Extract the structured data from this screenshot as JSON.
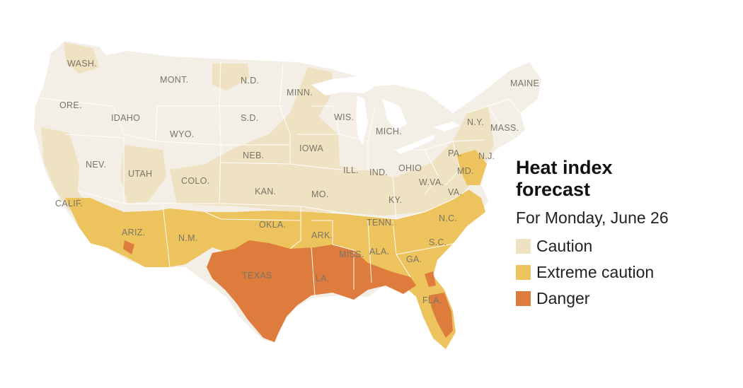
{
  "legend": {
    "title": "Heat index forecast",
    "subtitle": "For Monday, June 26",
    "items": [
      {
        "label": "Caution",
        "color": "#efe2c2"
      },
      {
        "label": "Extreme caution",
        "color": "#ecc35c"
      },
      {
        "label": "Danger",
        "color": "#dd7c3d"
      }
    ]
  },
  "map": {
    "base_color": "#f3efe6",
    "border_color": "#ffffff",
    "state_labels": {
      "wash": "WASH.",
      "ore": "ORE.",
      "calif": "CALIF.",
      "idaho": "IDAHO",
      "nev": "NEV.",
      "mont": "MONT.",
      "wyo": "WYO.",
      "utah": "UTAH",
      "ariz": "ARIZ.",
      "colo": "COLO.",
      "nm": "N.M.",
      "nd": "N.D.",
      "sd": "S.D.",
      "neb": "NEB.",
      "kan": "KAN.",
      "okla": "OKLA.",
      "texas": "TEXAS",
      "minn": "MINN.",
      "iowa": "IOWA",
      "mo": "MO.",
      "ark": "ARK.",
      "la": "LA.",
      "wis": "WIS.",
      "ill": "ILL.",
      "miss": "MISS.",
      "mich": "MICH.",
      "ind": "IND.",
      "ohio": "OHIO",
      "ky": "KY.",
      "tenn": "TENN.",
      "ala": "ALA.",
      "ga": "GA.",
      "fla": "FLA.",
      "sc": "S.C.",
      "nc": "N.C.",
      "va": "VA.",
      "wva": "W.VA.",
      "md": "MD.",
      "pa": "PA.",
      "ny": "N.Y.",
      "nj": "N.J.",
      "mass": "MASS.",
      "maine": "MAINE"
    }
  }
}
